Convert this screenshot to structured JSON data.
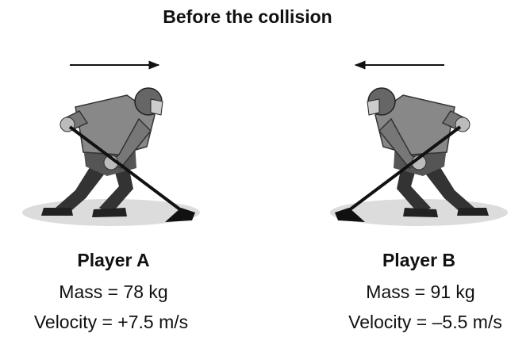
{
  "title": "Before the collision",
  "players": [
    {
      "name": "Player A",
      "mass": "Mass = 78 kg",
      "velocity": "Velocity = +7.5 m/s"
    },
    {
      "name": "Player B",
      "mass": "Mass = 91 kg",
      "velocity": "Velocity = –5.5 m/s"
    }
  ]
}
